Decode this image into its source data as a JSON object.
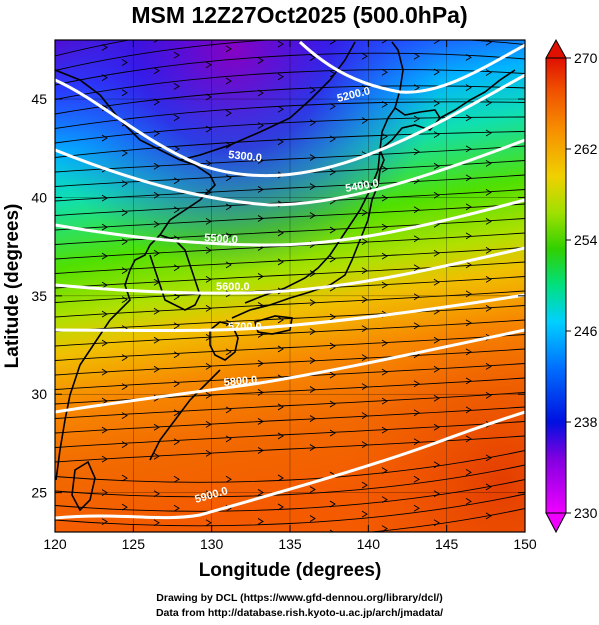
{
  "title": "MSM 12Z27Oct2025 (500.0hPa)",
  "credits": [
    "Drawing by DCL (https://www.gfd-dennou.org/library/dcl/)",
    "Data from http://database.rish.kyoto-u.ac.jp/arch/jmadata/"
  ],
  "map": {
    "xlabel": "Longitude (degrees)",
    "ylabel": "Latitude  (degrees)",
    "lon_range": [
      120,
      150
    ],
    "lat_range": [
      23,
      48
    ],
    "lon_ticks": [
      "120",
      "125",
      "130",
      "135",
      "140",
      "145",
      "150"
    ],
    "lat_ticks": [
      "25",
      "30",
      "35",
      "40",
      "45"
    ],
    "contour_labels": [
      "5200.0",
      "5300.0",
      "5400.0",
      "5500.0",
      "5600.0",
      "5700.0",
      "5800.0",
      "5900.0"
    ],
    "colorbar": {
      "ticks": [
        "230",
        "238",
        "246",
        "254",
        "262",
        "270"
      ],
      "min": 230,
      "max": 270
    }
  }
}
